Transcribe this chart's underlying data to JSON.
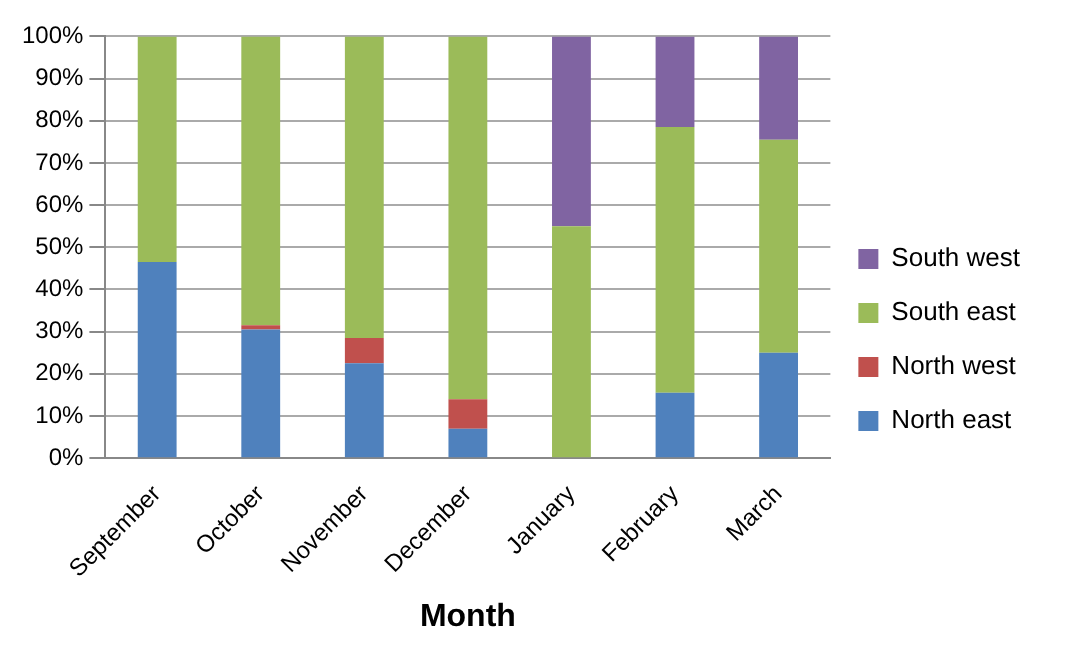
{
  "chart_data": {
    "type": "bar",
    "stacked": true,
    "xlabel": "Month",
    "categories": [
      "September",
      "October",
      "November",
      "December",
      "January",
      "February",
      "March"
    ],
    "series": [
      {
        "name": "North east",
        "color": "#4f81bd",
        "values": [
          46.5,
          30.5,
          22.5,
          7,
          0,
          15.5,
          25
        ]
      },
      {
        "name": "North west",
        "color": "#c0504d",
        "values": [
          0,
          1,
          6,
          7,
          0,
          0,
          0
        ]
      },
      {
        "name": "South east",
        "color": "#9bbb59",
        "values": [
          53.5,
          68.5,
          71.5,
          86,
          55,
          63,
          50.5
        ]
      },
      {
        "name": "South west",
        "color": "#8064a2",
        "values": [
          0,
          0,
          0,
          0,
          45,
          21.5,
          24.5
        ]
      }
    ],
    "ylim": [
      0,
      100
    ],
    "yticks": [
      {
        "value": 0,
        "label": "0%"
      },
      {
        "value": 10,
        "label": "10%"
      },
      {
        "value": 20,
        "label": "20%"
      },
      {
        "value": 30,
        "label": "30%"
      },
      {
        "value": 40,
        "label": "40%"
      },
      {
        "value": 50,
        "label": "50%"
      },
      {
        "value": 60,
        "label": "60%"
      },
      {
        "value": 70,
        "label": "70%"
      },
      {
        "value": 80,
        "label": "80%"
      },
      {
        "value": 90,
        "label": "90%"
      },
      {
        "value": 100,
        "label": "100%"
      }
    ],
    "grid": "y",
    "legend": "right"
  }
}
